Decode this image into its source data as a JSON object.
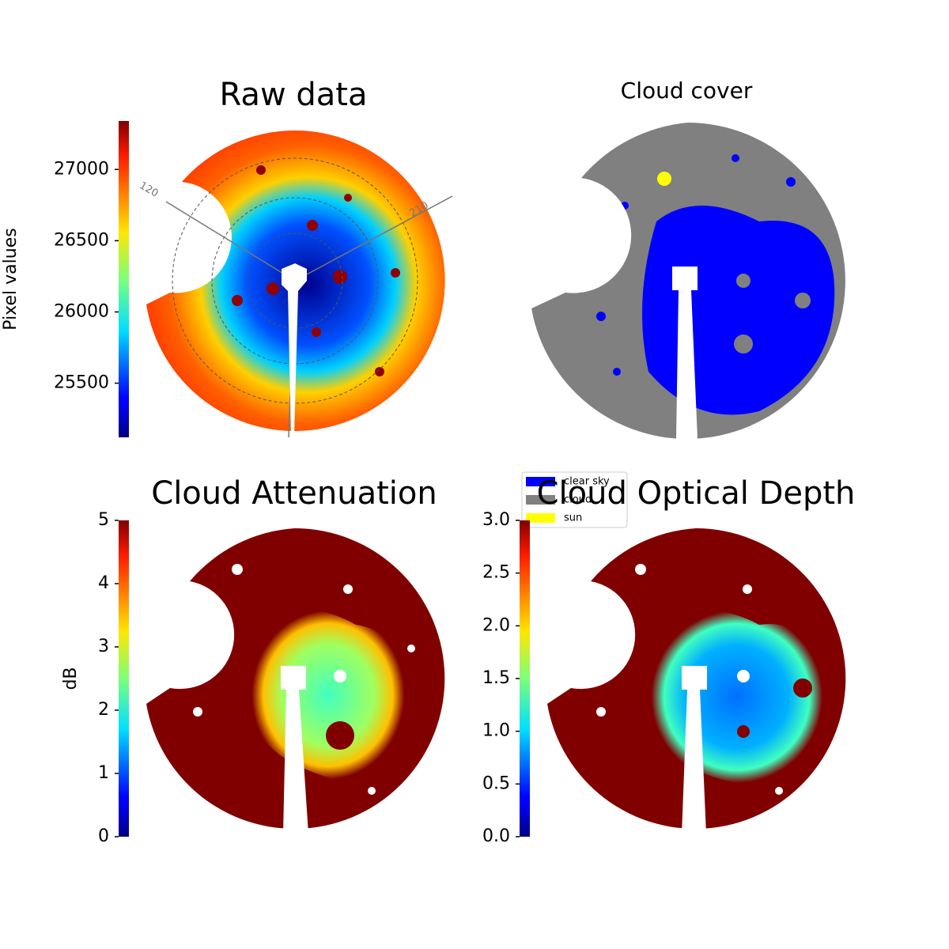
{
  "chart_data": [
    {
      "type": "image",
      "title": "Raw data",
      "colormap": "jet",
      "clim": [
        25120,
        27340
      ],
      "ticks": [
        25500,
        26000,
        26500,
        27000
      ],
      "colorbar_label": "Pixel values",
      "annotations": [
        "120",
        "210"
      ]
    },
    {
      "type": "image",
      "title": "Cloud cover",
      "series": [
        {
          "name": "clear sky",
          "color": "#0000ff"
        },
        {
          "name": "cloud",
          "color": "#808080"
        },
        {
          "name": "sun",
          "color": "#ffff00"
        }
      ]
    },
    {
      "type": "image",
      "title": "Cloud Attenuation",
      "colormap": "jet",
      "clim": [
        0,
        5
      ],
      "ticks": [
        0,
        1,
        2,
        3,
        4,
        5
      ],
      "colorbar_label": "dB"
    },
    {
      "type": "image",
      "title": "Cloud Optical Depth",
      "colormap": "jet",
      "clim": [
        0,
        3
      ],
      "ticks": [
        {
          "value": 0,
          "label": "0.0"
        },
        0.5,
        {
          "value": 1,
          "label": "1.0"
        },
        1.5,
        {
          "value": 2,
          "label": "2.0"
        },
        2.5,
        {
          "value": 3,
          "label": "3.0"
        }
      ]
    }
  ]
}
